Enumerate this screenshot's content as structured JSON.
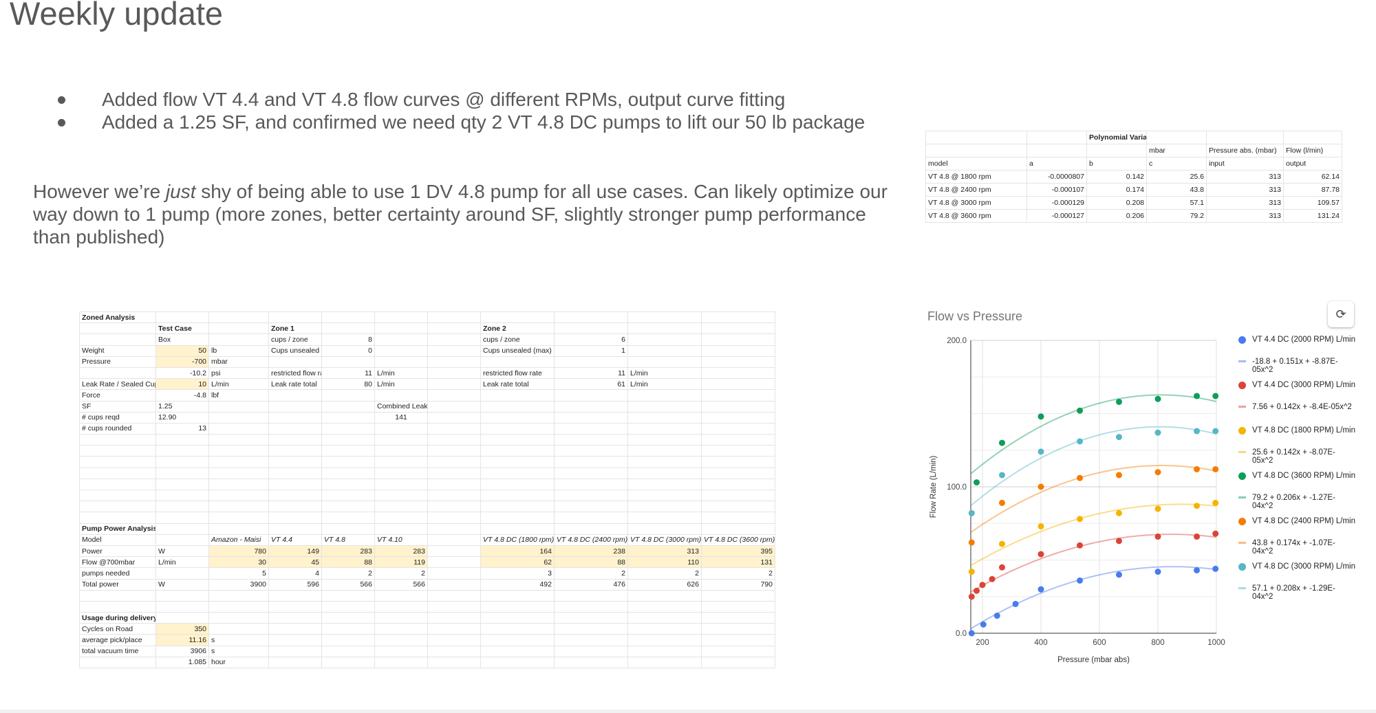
{
  "slide": {
    "title": "Weekly update",
    "bullets": [
      "Added flow VT 4.4 and VT 4.8 flow curves @ different RPMs, output curve fitting",
      "Added a 1.25 SF, and confirmed we need qty 2 VT 4.8 DC pumps to lift our 50 lb package"
    ],
    "paragraph": {
      "before": "However we’re ",
      "emphasis": "just",
      "after": " shy of being able to use 1 DV 4.8 pump for all use cases. Can likely optimize our way down to 1 pump (more zones, better certainty around SF, slightly stronger pump performance than published)"
    }
  },
  "polynomial_table": {
    "rows": [
      [
        "",
        "",
        "Polynomial Variables",
        "",
        "",
        ""
      ],
      [
        "",
        "",
        "",
        "mbar",
        "Pressure abs. (mbar)",
        "Flow (l/min)"
      ],
      [
        "model",
        "a",
        "b",
        "c",
        "input",
        "output"
      ],
      [
        "VT 4.8 @ 1800 rpm",
        "-0.0000807",
        "0.142",
        "25.6",
        "313",
        "62.14"
      ],
      [
        "VT 4.8 @ 2400 rpm",
        "-0.000107",
        "0.174",
        "43.8",
        "313",
        "87.78"
      ],
      [
        "VT 4.8 @ 3000 rpm",
        "-0.000129",
        "0.208",
        "57.1",
        "313",
        "109.57"
      ],
      [
        "VT 4.8 @ 3600 rpm",
        "-0.000127",
        "0.206",
        "79.2",
        "313",
        "131.24"
      ]
    ]
  },
  "zoned_sheet": {
    "rows": [
      [
        "Zoned Analysis",
        "",
        "",
        "",
        "",
        "",
        "",
        "",
        "",
        "",
        ""
      ],
      [
        "",
        "Test Case",
        "",
        "Zone 1",
        "",
        "",
        "",
        "Zone 2",
        "",
        "",
        ""
      ],
      [
        "",
        "Box",
        "",
        "cups / zone",
        "8",
        "",
        "",
        "cups / zone",
        "6",
        "",
        ""
      ],
      [
        "Weight",
        "50",
        "lb",
        "Cups unsealed (",
        "0",
        "",
        "",
        "Cups unsealed (max)",
        "1",
        "",
        ""
      ],
      [
        "Pressure",
        "-700",
        "mbar",
        "",
        "",
        "",
        "",
        "",
        "",
        "",
        ""
      ],
      [
        "",
        "-10.2",
        "psi",
        "restricted flow ra",
        "11",
        "L/min",
        "",
        "restricted flow rate",
        "11",
        "L/min",
        ""
      ],
      [
        "Leak Rate / Sealed Cup",
        "10",
        "L/min",
        "Leak rate total",
        "80",
        "L/min",
        "",
        "Leak rate total",
        "61",
        "L/min",
        ""
      ],
      [
        "Force",
        "-4.8",
        "lbf",
        "",
        "",
        "",
        "",
        "",
        "",
        "",
        ""
      ],
      [
        "SF",
        "1.25",
        "",
        "",
        "",
        "Combined Leak Rate",
        "",
        "",
        "",
        "",
        ""
      ],
      [
        "# cups reqd",
        "12.90",
        "",
        "",
        "",
        "141",
        "",
        "",
        "",
        "",
        ""
      ],
      [
        "# cups rounded",
        "13",
        "",
        "",
        "",
        "",
        "",
        "",
        "",
        "",
        ""
      ],
      [
        "",
        "",
        "",
        "",
        "",
        "",
        "",
        "",
        "",
        "",
        ""
      ],
      [
        "",
        "",
        "",
        "",
        "",
        "",
        "",
        "",
        "",
        "",
        ""
      ],
      [
        "",
        "",
        "",
        "",
        "",
        "",
        "",
        "",
        "",
        "",
        ""
      ],
      [
        "",
        "",
        "",
        "",
        "",
        "",
        "",
        "",
        "",
        "",
        ""
      ],
      [
        "",
        "",
        "",
        "",
        "",
        "",
        "",
        "",
        "",
        "",
        ""
      ],
      [
        "",
        "",
        "",
        "",
        "",
        "",
        "",
        "",
        "",
        "",
        ""
      ],
      [
        "",
        "",
        "",
        "",
        "",
        "",
        "",
        "",
        "",
        "",
        ""
      ],
      [
        "",
        "",
        "",
        "",
        "",
        "",
        "",
        "",
        "",
        "",
        ""
      ],
      [
        "Pump Power Analysis",
        "",
        "",
        "",
        "",
        "",
        "",
        "",
        "",
        "",
        ""
      ],
      [
        "Model",
        "",
        "Amazon - Maisi",
        "VT 4.4",
        "VT 4.8",
        "VT 4.10",
        "",
        "VT 4.8 DC (1800 rpm)",
        "VT 4.8 DC (2400 rpm)",
        "VT 4.8 DC (3000 rpm)",
        "VT 4.8 DC (3600 rpm)"
      ],
      [
        "Power",
        "W",
        "780",
        "149",
        "283",
        "283",
        "",
        "164",
        "238",
        "313",
        "395"
      ],
      [
        "Flow @700mbar",
        "L/min",
        "30",
        "45",
        "88",
        "119",
        "",
        "62",
        "88",
        "110",
        "131"
      ],
      [
        "pumps needed",
        "",
        "5",
        "4",
        "2",
        "2",
        "",
        "3",
        "2",
        "2",
        "2"
      ],
      [
        "Total power",
        "W",
        "3900",
        "596",
        "566",
        "566",
        "",
        "492",
        "476",
        "626",
        "790"
      ],
      [
        "",
        "",
        "",
        "",
        "",
        "",
        "",
        "",
        "",
        "",
        ""
      ],
      [
        "",
        "",
        "",
        "",
        "",
        "",
        "",
        "",
        "",
        "",
        ""
      ],
      [
        "Usage during delivery",
        "",
        "",
        "",
        "",
        "",
        "",
        "",
        "",
        "",
        ""
      ],
      [
        "Cycles on Road",
        "350",
        "",
        "",
        "",
        "",
        "",
        "",
        "",
        "",
        ""
      ],
      [
        "average pick/place",
        "11.16",
        "s",
        "",
        "",
        "",
        "",
        "",
        "",
        "",
        ""
      ],
      [
        "total vacuum time",
        "3906",
        "s",
        "",
        "",
        "",
        "",
        "",
        "",
        "",
        ""
      ],
      [
        "",
        "1.085",
        "hour",
        "",
        "",
        "",
        "",
        "",
        "",
        "",
        ""
      ]
    ]
  },
  "chart_data": {
    "type": "scatter",
    "title": "Flow vs Pressure",
    "xlabel": "Pressure (mbar abs)",
    "ylabel": "Flow Rate (L/min)",
    "xlim": [
      160,
      1000
    ],
    "ylim": [
      0,
      200
    ],
    "xticks": [
      "200",
      "400",
      "600",
      "800",
      "1000"
    ],
    "yticks": [
      "0.0",
      "100.0",
      "200.0"
    ],
    "grid": true,
    "legend_position": "right",
    "series": [
      {
        "name": "VT 4.4 DC (2000 RPM) L/min",
        "color": "#4a7bec",
        "x": [
          163,
          203,
          250,
          313,
          400,
          533,
          667,
          800,
          933,
          997
        ],
        "y": [
          0,
          6,
          12,
          20,
          30,
          36,
          40,
          42,
          43,
          44
        ],
        "trendline": "-18.8 + 0.151x + -8.87E-05x^2",
        "trend": [
          -18.8,
          0.151,
          -8.87e-05
        ]
      },
      {
        "name": "VT 4.4 DC (3000 RPM) L/min",
        "color": "#db4437",
        "x": [
          163,
          180,
          200,
          233,
          267,
          400,
          533,
          667,
          800,
          933,
          997
        ],
        "y": [
          25,
          29,
          33,
          37,
          45,
          54,
          60,
          63,
          66,
          66,
          68
        ],
        "trendline": "7.56 + 0.142x + -8.4E-05x^2",
        "trend": [
          7.56,
          0.142,
          -8.4e-05
        ]
      },
      {
        "name": "VT 4.8 DC (1800 RPM) L/min",
        "color": "#f4b400",
        "x": [
          163,
          267,
          400,
          533,
          667,
          800,
          933,
          997
        ],
        "y": [
          42,
          61,
          73,
          78,
          82,
          85,
          87,
          89
        ],
        "trendline": "25.6 + 0.142x + -8.07E-05x^2",
        "trend": [
          25.6,
          0.142,
          -8.07e-05
        ]
      },
      {
        "name": "VT 4.8 DC (3600 RPM) L/min",
        "color": "#0f9d58",
        "x": [
          180,
          267,
          400,
          533,
          667,
          800,
          933,
          997
        ],
        "y": [
          103,
          130,
          148,
          152,
          158,
          160,
          162,
          162
        ],
        "trendline": "79.2 + 0.206x + -1.27E-04x^2",
        "trend": [
          79.2,
          0.206,
          -0.000127
        ]
      },
      {
        "name": "VT 4.8 DC (2400 RPM) L/min",
        "color": "#f57c00",
        "x": [
          163,
          267,
          400,
          533,
          667,
          800,
          933,
          997
        ],
        "y": [
          62,
          89,
          100,
          106,
          108,
          110,
          112,
          112
        ],
        "trendline": "43.8 + 0.174x + -1.07E-04x^2",
        "trend": [
          43.8,
          0.174,
          -0.000107
        ]
      },
      {
        "name": "VT 4.8 DC (3000 RPM) L/min",
        "color": "#57b6c8",
        "x": [
          163,
          267,
          400,
          533,
          667,
          800,
          933,
          997
        ],
        "y": [
          82,
          108,
          124,
          131,
          134,
          137,
          138,
          138
        ],
        "trendline": "57.1 + 0.208x + -1.29E-04x^2",
        "trend": [
          57.1,
          0.208,
          -0.000129
        ]
      }
    ]
  }
}
